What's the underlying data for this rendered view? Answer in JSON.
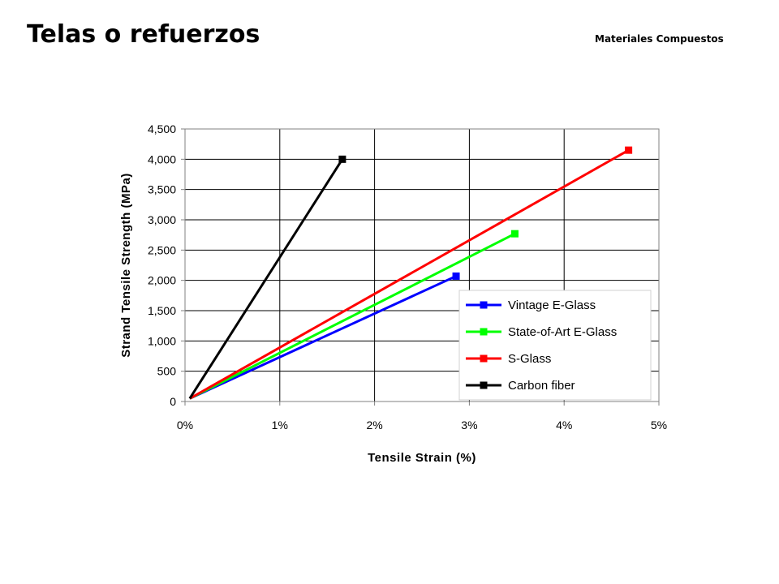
{
  "slide": {
    "title": "Telas o refuerzos",
    "header_right": "Materiales Compuestos"
  },
  "chart_data": {
    "type": "line",
    "xlabel": "Tensile Strain (%)",
    "ylabel": "Strand Tensile Strength (MPa)",
    "xlim": [
      0,
      5
    ],
    "ylim": [
      0,
      4500
    ],
    "x_ticks": [
      0,
      1,
      2,
      3,
      4,
      5
    ],
    "x_tick_labels": [
      "0%",
      "1%",
      "2%",
      "3%",
      "4%",
      "5%"
    ],
    "y_ticks": [
      0,
      500,
      1000,
      1500,
      2000,
      2500,
      3000,
      3500,
      4000,
      4500
    ],
    "y_tick_labels": [
      "0",
      "500",
      "1,000",
      "1,500",
      "2,000",
      "2,500",
      "3,000",
      "3,500",
      "4,000",
      "4,500"
    ],
    "grid": true,
    "legend_position": "bottom-right",
    "series": [
      {
        "name": "Vintage E-Glass",
        "color": "#0000ff",
        "marker": "square",
        "x": [
          0.05,
          2.86
        ],
        "y": [
          50,
          2070
        ]
      },
      {
        "name": "State-of-Art E-Glass",
        "color": "#00ff00",
        "marker": "square",
        "x": [
          0.05,
          3.48
        ],
        "y": [
          50,
          2770
        ]
      },
      {
        "name": "S-Glass",
        "color": "#ff0000",
        "marker": "square",
        "x": [
          0.05,
          4.68
        ],
        "y": [
          50,
          4150
        ]
      },
      {
        "name": "Carbon fiber",
        "color": "#000000",
        "marker": "square",
        "x": [
          0.05,
          1.66
        ],
        "y": [
          50,
          4000
        ]
      }
    ]
  }
}
